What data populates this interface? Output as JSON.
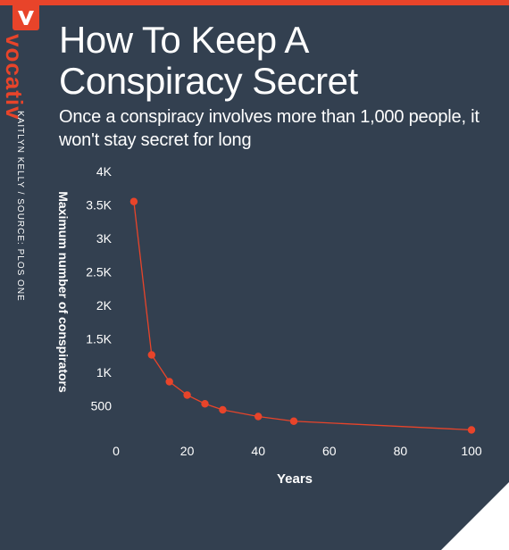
{
  "brand": {
    "name": "vocativ",
    "credit": "KAITLYN KELLY / SOURCE: PLOS ONE",
    "accent": "#e8442a",
    "background": "#334050"
  },
  "header": {
    "title": "How To Keep A Conspiracy Secret",
    "subtitle": "Once a conspiracy involves more than 1,000 people, it won't stay secret for long"
  },
  "chart_data": {
    "type": "line",
    "title": "How To Keep A Conspiracy Secret",
    "xlabel": "Years",
    "ylabel": "Maximum number of conspirators",
    "x": [
      5,
      10,
      15,
      20,
      25,
      30,
      40,
      50,
      100
    ],
    "values": [
      3550,
      1260,
      860,
      660,
      530,
      440,
      340,
      270,
      140
    ],
    "xlim": [
      0,
      100
    ],
    "ylim": [
      0,
      4000
    ],
    "xticks": [
      0,
      20,
      40,
      60,
      80,
      100
    ],
    "xtick_labels": [
      "0",
      "20",
      "40",
      "60",
      "80",
      "100"
    ],
    "yticks": [
      500,
      1000,
      1500,
      2000,
      2500,
      3000,
      3500,
      4000
    ],
    "ytick_labels": [
      "500",
      "1K",
      "1.5K",
      "2K",
      "2.5K",
      "3K",
      "3.5K",
      "4K"
    ],
    "grid": false,
    "color": "#e8442a"
  }
}
